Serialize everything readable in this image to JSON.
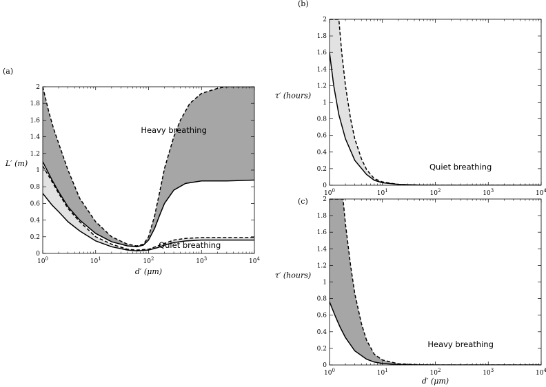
{
  "chart_data": [
    {
      "id": "a",
      "panel_label": "(a)",
      "type": "area",
      "xscale": "log",
      "xlim": [
        1,
        10000
      ],
      "ylim": [
        0,
        2
      ],
      "xlabel": "d′ (μm)",
      "ylabel": "L′ (m)",
      "xticks": [
        {
          "v": 1,
          "base": "10",
          "exp": "0"
        },
        {
          "v": 10,
          "base": "10",
          "exp": "1"
        },
        {
          "v": 100,
          "base": "10",
          "exp": "2"
        },
        {
          "v": 1000,
          "base": "10",
          "exp": "3"
        },
        {
          "v": 10000,
          "base": "10",
          "exp": "4"
        }
      ],
      "yticks": [
        {
          "v": 0,
          "label": "0"
        },
        {
          "v": 0.2,
          "label": "0.2"
        },
        {
          "v": 0.4,
          "label": "0.4"
        },
        {
          "v": 0.6,
          "label": "0.6"
        },
        {
          "v": 0.8,
          "label": "0.8"
        },
        {
          "v": 1,
          "label": "1"
        },
        {
          "v": 1.2,
          "label": "1.2"
        },
        {
          "v": 1.4,
          "label": "1.4"
        },
        {
          "v": 1.6,
          "label": "1.6"
        },
        {
          "v": 1.8,
          "label": "1.8"
        },
        {
          "v": 2,
          "label": "2"
        }
      ],
      "bands": [
        {
          "fill": "#a6a6a6",
          "lower": {
            "style": "solid",
            "points": [
              [
                1,
                1.1
              ],
              [
                1.5,
                0.88
              ],
              [
                2,
                0.74
              ],
              [
                3,
                0.56
              ],
              [
                5,
                0.4
              ],
              [
                10,
                0.24
              ],
              [
                20,
                0.14
              ],
              [
                40,
                0.09
              ],
              [
                60,
                0.08
              ],
              [
                80,
                0.1
              ],
              [
                100,
                0.16
              ],
              [
                130,
                0.3
              ],
              [
                160,
                0.45
              ],
              [
                200,
                0.6
              ],
              [
                300,
                0.76
              ],
              [
                500,
                0.84
              ],
              [
                1000,
                0.87
              ],
              [
                3000,
                0.87
              ],
              [
                10000,
                0.88
              ]
            ]
          },
          "upper": {
            "style": "dashed",
            "points": [
              [
                1,
                2.0
              ],
              [
                1.3,
                1.7
              ],
              [
                1.6,
                1.5
              ],
              [
                2,
                1.32
              ],
              [
                3,
                1.0
              ],
              [
                5,
                0.66
              ],
              [
                10,
                0.38
              ],
              [
                20,
                0.2
              ],
              [
                40,
                0.11
              ],
              [
                60,
                0.09
              ],
              [
                80,
                0.11
              ],
              [
                100,
                0.2
              ],
              [
                130,
                0.45
              ],
              [
                170,
                0.8
              ],
              [
                200,
                1.02
              ],
              [
                300,
                1.4
              ],
              [
                400,
                1.6
              ],
              [
                600,
                1.8
              ],
              [
                1000,
                1.92
              ],
              [
                2000,
                1.98
              ],
              [
                3000,
                2.0
              ],
              [
                10000,
                2.0
              ]
            ]
          },
          "annotation": {
            "text": "Heavy breathing",
            "x": 300,
            "y": 1.48
          }
        },
        {
          "fill": "#e2e2e2",
          "lower": {
            "style": "solid",
            "points": [
              [
                1,
                0.72
              ],
              [
                1.5,
                0.58
              ],
              [
                2,
                0.5
              ],
              [
                3,
                0.38
              ],
              [
                5,
                0.27
              ],
              [
                10,
                0.15
              ],
              [
                20,
                0.08
              ],
              [
                40,
                0.04
              ],
              [
                60,
                0.03
              ],
              [
                100,
                0.04
              ],
              [
                150,
                0.07
              ],
              [
                200,
                0.1
              ],
              [
                300,
                0.13
              ],
              [
                500,
                0.15
              ],
              [
                1000,
                0.16
              ],
              [
                10000,
                0.16
              ]
            ]
          },
          "upper": {
            "style": "dashed",
            "points": [
              [
                1,
                1.05
              ],
              [
                1.5,
                0.86
              ],
              [
                2,
                0.72
              ],
              [
                3,
                0.54
              ],
              [
                5,
                0.38
              ],
              [
                10,
                0.2
              ],
              [
                20,
                0.11
              ],
              [
                40,
                0.05
              ],
              [
                60,
                0.04
              ],
              [
                100,
                0.05
              ],
              [
                150,
                0.09
              ],
              [
                200,
                0.12
              ],
              [
                300,
                0.16
              ],
              [
                500,
                0.18
              ],
              [
                1000,
                0.19
              ],
              [
                10000,
                0.19
              ]
            ]
          },
          "annotation": {
            "text": "Quiet breathing",
            "x": 600,
            "y": 0.1
          }
        }
      ]
    },
    {
      "id": "b",
      "panel_label": "(b)",
      "type": "area",
      "xscale": "log",
      "xlim": [
        1,
        10000
      ],
      "ylim": [
        0,
        2
      ],
      "xlabel": "",
      "ylabel": "τ′ (hours)",
      "xticks": [
        {
          "v": 1,
          "base": "10",
          "exp": "0"
        },
        {
          "v": 10,
          "base": "10",
          "exp": "1"
        },
        {
          "v": 100,
          "base": "10",
          "exp": "2"
        },
        {
          "v": 1000,
          "base": "10",
          "exp": "3"
        },
        {
          "v": 10000,
          "base": "10",
          "exp": "4"
        }
      ],
      "yticks": [
        {
          "v": 0,
          "label": "0"
        },
        {
          "v": 0.2,
          "label": "0.2"
        },
        {
          "v": 0.4,
          "label": "0.4"
        },
        {
          "v": 0.6,
          "label": "0.6"
        },
        {
          "v": 0.8,
          "label": "0.8"
        },
        {
          "v": 1,
          "label": "1"
        },
        {
          "v": 1.2,
          "label": "1.2"
        },
        {
          "v": 1.4,
          "label": "1.4"
        },
        {
          "v": 1.6,
          "label": "1.6"
        },
        {
          "v": 1.8,
          "label": "1.8"
        },
        {
          "v": 2,
          "label": "2"
        }
      ],
      "bands": [
        {
          "fill": "#e2e2e2",
          "lower": {
            "style": "solid",
            "points": [
              [
                1,
                1.6
              ],
              [
                1.2,
                1.2
              ],
              [
                1.5,
                0.85
              ],
              [
                2,
                0.56
              ],
              [
                3,
                0.3
              ],
              [
                5,
                0.13
              ],
              [
                7,
                0.06
              ],
              [
                10,
                0.03
              ],
              [
                20,
                0.01
              ],
              [
                50,
                0.002
              ],
              [
                100,
                0
              ],
              [
                10000,
                0
              ]
            ]
          },
          "upper": {
            "style": "dashed",
            "points": [
              [
                1,
                2.0
              ],
              [
                1.5,
                2.0
              ],
              [
                1.7,
                1.6
              ],
              [
                2,
                1.2
              ],
              [
                2.5,
                0.8
              ],
              [
                3,
                0.56
              ],
              [
                4,
                0.32
              ],
              [
                5,
                0.19
              ],
              [
                7,
                0.08
              ],
              [
                10,
                0.04
              ],
              [
                20,
                0.01
              ],
              [
                50,
                0.002
              ],
              [
                100,
                0
              ],
              [
                10000,
                0
              ]
            ]
          },
          "annotation": {
            "text": "Quiet breathing",
            "x": 300,
            "y": 0.22
          }
        }
      ]
    },
    {
      "id": "c",
      "panel_label": "(c)",
      "type": "area",
      "xscale": "log",
      "xlim": [
        1,
        10000
      ],
      "ylim": [
        0,
        2
      ],
      "xlabel": "d′ (μm)",
      "ylabel": "τ′ (hours)",
      "xticks": [
        {
          "v": 1,
          "base": "10",
          "exp": "0"
        },
        {
          "v": 10,
          "base": "10",
          "exp": "1"
        },
        {
          "v": 100,
          "base": "10",
          "exp": "2"
        },
        {
          "v": 1000,
          "base": "10",
          "exp": "3"
        },
        {
          "v": 10000,
          "base": "10",
          "exp": "4"
        }
      ],
      "yticks": [
        {
          "v": 0,
          "label": "0"
        },
        {
          "v": 0.2,
          "label": "0.2"
        },
        {
          "v": 0.4,
          "label": "0.4"
        },
        {
          "v": 0.6,
          "label": "0.6"
        },
        {
          "v": 0.8,
          "label": "0.8"
        },
        {
          "v": 1,
          "label": "1"
        },
        {
          "v": 1.2,
          "label": "1.2"
        },
        {
          "v": 1.4,
          "label": "1.4"
        },
        {
          "v": 1.6,
          "label": "1.6"
        },
        {
          "v": 1.8,
          "label": "1.8"
        },
        {
          "v": 2,
          "label": "2"
        }
      ],
      "bands": [
        {
          "fill": "#a6a6a6",
          "lower": {
            "style": "solid",
            "points": [
              [
                1,
                0.76
              ],
              [
                1.3,
                0.58
              ],
              [
                1.6,
                0.45
              ],
              [
                2,
                0.33
              ],
              [
                3,
                0.17
              ],
              [
                5,
                0.07
              ],
              [
                7,
                0.035
              ],
              [
                10,
                0.018
              ],
              [
                20,
                0.005
              ],
              [
                50,
                0.001
              ],
              [
                100,
                0
              ],
              [
                10000,
                0
              ]
            ]
          },
          "upper": {
            "style": "dashed",
            "points": [
              [
                1,
                2.0
              ],
              [
                1.8,
                2.0
              ],
              [
                2,
                1.7
              ],
              [
                2.5,
                1.2
              ],
              [
                3,
                0.86
              ],
              [
                4,
                0.5
              ],
              [
                5,
                0.3
              ],
              [
                7,
                0.13
              ],
              [
                10,
                0.06
              ],
              [
                20,
                0.015
              ],
              [
                50,
                0.003
              ],
              [
                100,
                0
              ],
              [
                10000,
                0
              ]
            ]
          },
          "annotation": {
            "text": "Heavy breathing",
            "x": 300,
            "y": 0.25
          }
        }
      ]
    }
  ]
}
